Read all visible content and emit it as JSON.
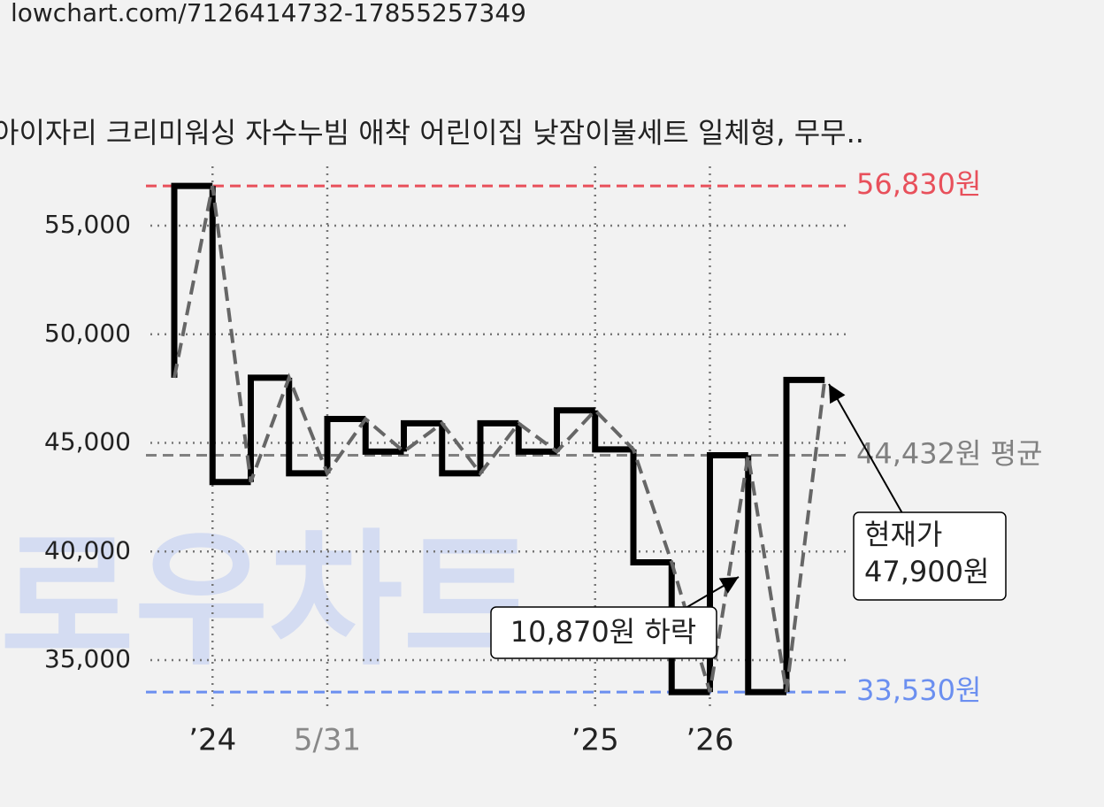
{
  "url": "lowchart.com/7126414732-17855257349",
  "chart_data": {
    "type": "line",
    "title": "아이자리 크리미워싱 자수누빔 애착 어린이집 낮잠이불세트 일체형, 무무..",
    "categories": [
      null,
      "’24",
      null,
      null,
      "5/31",
      null,
      null,
      null,
      null,
      null,
      null,
      "’25",
      null,
      null,
      "’26",
      null,
      null,
      null
    ],
    "values": [
      48000,
      56830,
      43200,
      48000,
      43600,
      46100,
      44600,
      45900,
      43600,
      45900,
      44600,
      46500,
      44700,
      39500,
      33530,
      44432,
      33530,
      47900
    ],
    "color": "#000000",
    "trend_color": "#666666",
    "ylim": [
      32800,
      57650
    ],
    "yticks": [
      {
        "value": 35000,
        "label": "35,000"
      },
      {
        "value": 40000,
        "label": "40,000"
      },
      {
        "value": 45000,
        "label": "45,000"
      },
      {
        "value": 50000,
        "label": "50,000"
      },
      {
        "value": 55000,
        "label": "55,000"
      }
    ],
    "grid": true,
    "reference_lines": [
      {
        "value": 56830,
        "label": "56,830원",
        "color": "#e8505b"
      },
      {
        "value": 33530,
        "label": "33,530원",
        "color": "#6b8ff0"
      },
      {
        "value": 44432,
        "label": "44,432원 평균",
        "color": "#808080"
      }
    ],
    "annotations": [
      "10,870원 하락",
      "현재가",
      "47,900원"
    ],
    "watermark": "로우차트"
  }
}
